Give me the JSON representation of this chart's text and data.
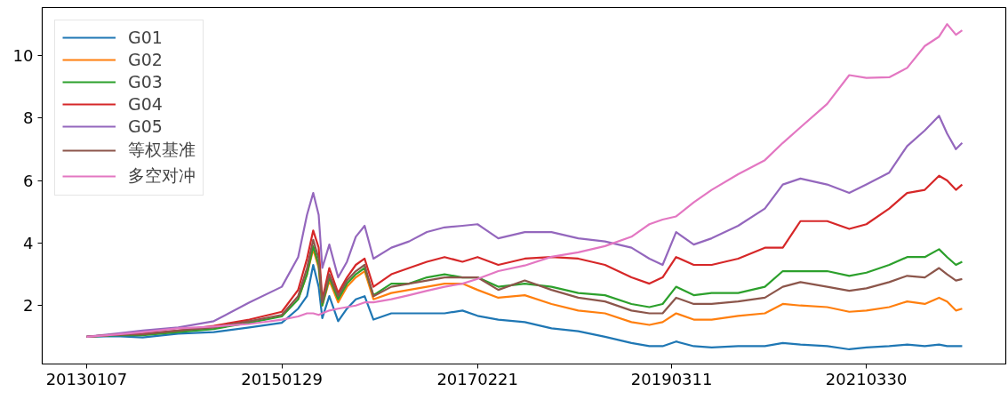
{
  "chart_data": {
    "type": "line",
    "x": [
      "2013-01-07",
      "2013-04-30",
      "2013-08-11",
      "2013-12-26",
      "2014-05-12",
      "2014-09-26",
      "2015-01-29",
      "2015-04-02",
      "2015-05-06",
      "2015-05-30",
      "2015-06-20",
      "2015-07-04",
      "2015-07-31",
      "2015-09-03",
      "2015-10-07",
      "2015-11-10",
      "2015-12-14",
      "2016-01-17",
      "2016-03-26",
      "2016-06-02",
      "2016-08-10",
      "2016-10-17",
      "2016-12-25",
      "2017-02-21",
      "2017-05-12",
      "2017-08-22",
      "2017-12-03",
      "2018-03-16",
      "2018-06-27",
      "2018-10-07",
      "2018-12-15",
      "2019-02-04",
      "2019-03-28",
      "2019-06-04",
      "2019-08-12",
      "2019-11-22",
      "2020-03-04",
      "2020-05-12",
      "2020-07-19",
      "2020-10-30",
      "2021-01-23",
      "2021-03-30",
      "2021-06-26",
      "2021-09-03",
      "2021-11-10",
      "2022-01-04",
      "2022-02-04",
      "2022-03-10",
      "2022-04-03"
    ],
    "series": [
      {
        "name": "G01",
        "color": "#1f77b4",
        "values": [
          1.0,
          1.02,
          0.98,
          1.1,
          1.15,
          1.3,
          1.45,
          1.9,
          2.3,
          3.3,
          2.6,
          1.6,
          2.3,
          1.5,
          1.9,
          2.2,
          2.3,
          1.55,
          1.75,
          1.75,
          1.75,
          1.75,
          1.84,
          1.67,
          1.55,
          1.47,
          1.27,
          1.18,
          1.0,
          0.8,
          0.7,
          0.7,
          0.85,
          0.7,
          0.66,
          0.7,
          0.7,
          0.8,
          0.75,
          0.7,
          0.6,
          0.66,
          0.7,
          0.75,
          0.7,
          0.75,
          0.7,
          0.7,
          0.7
        ]
      },
      {
        "name": "G02",
        "color": "#ff7f0e",
        "values": [
          null,
          null,
          null,
          null,
          null,
          null,
          null,
          2.2,
          3.0,
          3.8,
          3.2,
          2.0,
          2.8,
          2.1,
          2.6,
          2.9,
          3.1,
          2.2,
          2.4,
          2.5,
          2.6,
          2.7,
          2.7,
          2.5,
          2.25,
          2.33,
          2.05,
          1.84,
          1.75,
          1.47,
          1.38,
          1.47,
          1.75,
          1.55,
          1.55,
          1.67,
          1.75,
          2.05,
          2.0,
          1.95,
          1.8,
          1.84,
          1.95,
          2.13,
          2.05,
          2.25,
          2.13,
          1.84,
          1.9
        ]
      },
      {
        "name": "G03",
        "color": "#2ca02c",
        "values": [
          1.0,
          1.05,
          1.05,
          1.15,
          1.25,
          1.45,
          1.65,
          2.2,
          3.0,
          3.9,
          3.3,
          2.0,
          2.9,
          2.2,
          2.7,
          3.0,
          3.2,
          2.33,
          2.7,
          2.7,
          2.9,
          3.0,
          2.9,
          2.9,
          2.6,
          2.7,
          2.6,
          2.4,
          2.33,
          2.05,
          1.95,
          2.05,
          2.6,
          2.33,
          2.4,
          2.4,
          2.6,
          3.1,
          3.1,
          3.1,
          2.95,
          3.05,
          3.3,
          3.55,
          3.55,
          3.8,
          3.55,
          3.3,
          3.4
        ]
      },
      {
        "name": "G04",
        "color": "#d62728",
        "values": [
          1.0,
          1.07,
          1.1,
          1.2,
          1.35,
          1.55,
          1.8,
          2.5,
          3.5,
          4.4,
          3.85,
          2.2,
          3.2,
          2.4,
          2.9,
          3.3,
          3.5,
          2.6,
          3.0,
          3.2,
          3.4,
          3.55,
          3.4,
          3.55,
          3.3,
          3.5,
          3.55,
          3.5,
          3.3,
          2.9,
          2.7,
          2.9,
          3.55,
          3.3,
          3.3,
          3.5,
          3.85,
          3.85,
          4.7,
          4.7,
          4.45,
          4.6,
          5.1,
          5.6,
          5.7,
          6.15,
          6.0,
          5.7,
          5.87
        ]
      },
      {
        "name": "G05",
        "color": "#9467bd",
        "values": [
          1.0,
          1.1,
          1.2,
          1.3,
          1.5,
          2.1,
          2.6,
          3.55,
          4.9,
          5.6,
          4.9,
          3.2,
          3.95,
          2.9,
          3.4,
          4.2,
          4.55,
          3.5,
          3.85,
          4.05,
          4.35,
          4.5,
          4.55,
          4.6,
          4.15,
          4.35,
          4.35,
          4.15,
          4.05,
          3.85,
          3.5,
          3.3,
          4.35,
          3.95,
          4.15,
          4.55,
          5.1,
          5.87,
          6.06,
          5.87,
          5.6,
          5.87,
          6.25,
          7.1,
          7.6,
          8.07,
          7.5,
          7.0,
          7.2
        ]
      },
      {
        "name": "等权基准",
        "color": "#8c564b",
        "values": [
          1.0,
          1.07,
          1.08,
          1.2,
          1.3,
          1.5,
          1.7,
          2.3,
          3.2,
          4.1,
          3.5,
          2.1,
          3.0,
          2.3,
          2.8,
          3.1,
          3.3,
          2.3,
          2.6,
          2.7,
          2.8,
          2.9,
          2.9,
          2.9,
          2.5,
          2.8,
          2.5,
          2.25,
          2.13,
          1.84,
          1.75,
          1.75,
          2.25,
          2.05,
          2.05,
          2.13,
          2.25,
          2.6,
          2.75,
          2.6,
          2.47,
          2.55,
          2.75,
          2.95,
          2.9,
          3.2,
          3.0,
          2.8,
          2.85
        ]
      },
      {
        "name": "多空对冲",
        "color": "#e377c2",
        "values": [
          1.0,
          1.07,
          1.15,
          1.27,
          1.33,
          1.41,
          1.55,
          1.65,
          1.75,
          1.75,
          1.7,
          1.75,
          1.84,
          1.9,
          1.95,
          2.0,
          2.1,
          2.1,
          2.2,
          2.33,
          2.47,
          2.6,
          2.7,
          2.85,
          3.1,
          3.28,
          3.56,
          3.7,
          3.9,
          4.2,
          4.6,
          4.75,
          4.85,
          5.3,
          5.7,
          6.2,
          6.65,
          7.2,
          7.7,
          8.45,
          9.37,
          9.28,
          9.3,
          9.6,
          10.3,
          10.6,
          11.0,
          10.66,
          10.8
        ]
      }
    ],
    "xlim": [
      "2012-07-20",
      "2022-09-18"
    ],
    "xticks": [
      {
        "value": "2013-01-07",
        "label": "20130107"
      },
      {
        "value": "2015-01-29",
        "label": "20150129"
      },
      {
        "value": "2017-02-21",
        "label": "20170221"
      },
      {
        "value": "2019-03-11",
        "label": "20190311"
      },
      {
        "value": "2021-03-30",
        "label": "20210330"
      }
    ],
    "ylim": [
      0.13,
      11.53
    ],
    "yticks": [
      2,
      4,
      6,
      8,
      10
    ],
    "grid": false,
    "legend": "top left",
    "marker": "none",
    "line_style": "solid"
  }
}
